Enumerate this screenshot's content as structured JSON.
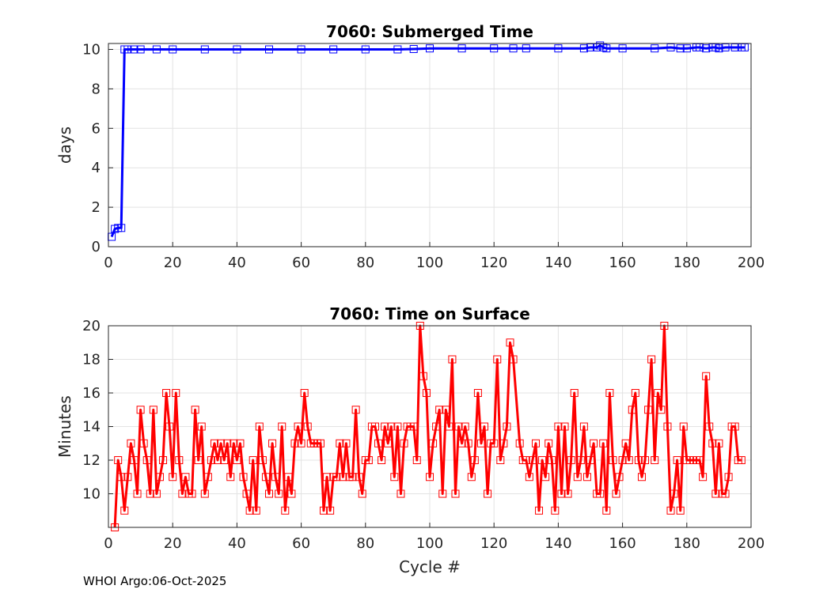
{
  "footer": "WHOI Argo:06-Oct-2025",
  "chart_data": [
    {
      "type": "line",
      "title": "7060: Submerged Time",
      "xlabel": "",
      "ylabel": "days",
      "xlim": [
        0,
        200
      ],
      "ylim": [
        0,
        10.3
      ],
      "xticks": [
        "0",
        "20",
        "40",
        "60",
        "80",
        "100",
        "120",
        "140",
        "160",
        "180",
        "200"
      ],
      "yticks": [
        "0",
        "2",
        "4",
        "6",
        "8",
        "10"
      ],
      "grid": true,
      "marker": "square",
      "color": "#0000ff",
      "series": [
        {
          "name": "Submerged Time",
          "x": [
            1,
            2,
            3,
            4,
            5,
            6,
            8,
            10,
            15,
            20,
            30,
            40,
            50,
            60,
            70,
            80,
            90,
            95,
            100,
            110,
            120,
            126,
            130,
            140,
            148,
            150,
            152,
            153,
            154,
            155,
            160,
            170,
            175,
            178,
            180,
            183,
            184,
            186,
            188,
            189,
            190,
            192,
            195,
            197,
            198
          ],
          "y": [
            0.5,
            0.9,
            0.95,
            0.95,
            10.0,
            10.0,
            10.0,
            10.0,
            10.0,
            10.0,
            10.0,
            10.0,
            10.0,
            10.0,
            10.0,
            10.0,
            10.0,
            10.02,
            10.05,
            10.05,
            10.05,
            10.05,
            10.05,
            10.05,
            10.05,
            10.1,
            10.1,
            10.2,
            10.1,
            10.05,
            10.05,
            10.05,
            10.1,
            10.05,
            10.05,
            10.1,
            10.1,
            10.05,
            10.1,
            10.1,
            10.05,
            10.1,
            10.1,
            10.1,
            10.1
          ]
        }
      ]
    },
    {
      "type": "line",
      "title": "7060: Time on Surface",
      "xlabel": "Cycle #",
      "ylabel": "Minutes",
      "xlim": [
        0,
        200
      ],
      "ylim": [
        8,
        20
      ],
      "xticks": [
        "0",
        "20",
        "40",
        "60",
        "80",
        "100",
        "120",
        "140",
        "160",
        "180",
        "200"
      ],
      "yticks": [
        "10",
        "12",
        "14",
        "16",
        "18",
        "20"
      ],
      "grid": true,
      "marker": "square",
      "color": "#ff0000",
      "series": [
        {
          "name": "Time on Surface",
          "x": [
            2,
            3,
            4,
            5,
            6,
            7,
            8,
            9,
            10,
            11,
            12,
            13,
            14,
            15,
            16,
            17,
            18,
            19,
            20,
            21,
            22,
            23,
            24,
            25,
            26,
            27,
            28,
            29,
            30,
            31,
            32,
            33,
            34,
            35,
            36,
            37,
            38,
            39,
            40,
            41,
            42,
            43,
            44,
            45,
            46,
            47,
            48,
            49,
            50,
            51,
            52,
            53,
            54,
            55,
            56,
            57,
            58,
            59,
            60,
            61,
            62,
            63,
            64,
            65,
            66,
            67,
            68,
            69,
            70,
            71,
            72,
            73,
            74,
            75,
            76,
            77,
            78,
            79,
            80,
            81,
            82,
            83,
            84,
            85,
            86,
            87,
            88,
            89,
            90,
            91,
            92,
            93,
            94,
            95,
            96,
            97,
            98,
            99,
            100,
            101,
            102,
            103,
            104,
            105,
            106,
            107,
            108,
            109,
            110,
            111,
            112,
            113,
            114,
            115,
            116,
            117,
            118,
            119,
            120,
            121,
            122,
            123,
            124,
            125,
            126,
            128,
            129,
            130,
            131,
            132,
            133,
            134,
            135,
            136,
            137,
            138,
            139,
            140,
            141,
            142,
            143,
            144,
            145,
            146,
            147,
            148,
            149,
            150,
            151,
            152,
            153,
            154,
            155,
            156,
            157,
            158,
            159,
            160,
            161,
            162,
            163,
            164,
            165,
            166,
            167,
            168,
            169,
            170,
            171,
            172,
            173,
            174,
            175,
            176,
            177,
            178,
            179,
            180,
            181,
            182,
            183,
            184,
            185,
            186,
            187,
            188,
            189,
            190,
            191,
            192,
            193,
            194,
            195,
            196,
            197
          ],
          "y": [
            8,
            12,
            11,
            9,
            11,
            13,
            12,
            10,
            15,
            13,
            12,
            10,
            15,
            10,
            11,
            12,
            16,
            14,
            11,
            16,
            12,
            10,
            11,
            10,
            10,
            15,
            12,
            14,
            10,
            11,
            12,
            13,
            12,
            13,
            12,
            13,
            11,
            13,
            12,
            13,
            11,
            10,
            9,
            12,
            9,
            14,
            12,
            11,
            10,
            13,
            11,
            10,
            14,
            9,
            11,
            10,
            13,
            14,
            13,
            16,
            14,
            13,
            13,
            13,
            13,
            9,
            11,
            9,
            11,
            11,
            13,
            11,
            13,
            11,
            11,
            15,
            11,
            10,
            12,
            12,
            14,
            14,
            13,
            12,
            14,
            13,
            14,
            11,
            14,
            10,
            13,
            14,
            14,
            14,
            12,
            20,
            17,
            16,
            11,
            13,
            14,
            15,
            10,
            15,
            14,
            18,
            10,
            14,
            13,
            14,
            13,
            11,
            12,
            16,
            13,
            14,
            10,
            13,
            13,
            18,
            12,
            13,
            14,
            19,
            18,
            13,
            12,
            12,
            11,
            12,
            13,
            9,
            12,
            11,
            13,
            12,
            9,
            14,
            10,
            14,
            10,
            12,
            16,
            11,
            12,
            14,
            11,
            12,
            13,
            10,
            10,
            13,
            9,
            16,
            12,
            10,
            11,
            12,
            13,
            12,
            15,
            16,
            12,
            11,
            12,
            15,
            18,
            12,
            16,
            15,
            20,
            14,
            9,
            10,
            12,
            9,
            14,
            12,
            12,
            12,
            12,
            12,
            11,
            17,
            14,
            13,
            10,
            13,
            10,
            10,
            11,
            14,
            14,
            12,
            12
          ]
        }
      ]
    }
  ]
}
